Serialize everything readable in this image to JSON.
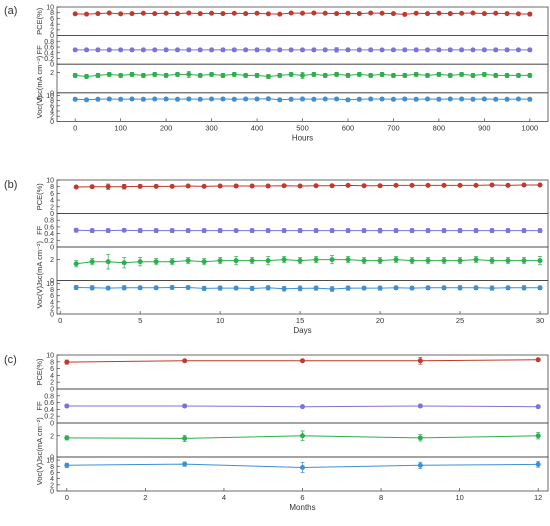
{
  "chart_data": [
    {
      "label": "(a)",
      "type": "line",
      "xlabel": "Hours",
      "xlim": [
        -40,
        1040
      ],
      "xticks": [
        0,
        100,
        200,
        300,
        400,
        500,
        600,
        700,
        800,
        900,
        1000
      ],
      "x": [
        0,
        25,
        50,
        75,
        100,
        125,
        150,
        175,
        200,
        225,
        250,
        275,
        300,
        325,
        350,
        375,
        400,
        425,
        450,
        475,
        500,
        525,
        550,
        575,
        600,
        625,
        650,
        675,
        700,
        725,
        750,
        775,
        800,
        825,
        850,
        875,
        900,
        925,
        950,
        975,
        1000
      ],
      "panels": [
        {
          "ylabel": "PCE(%)",
          "ylim": [
            0,
            10
          ],
          "yticks": [
            0,
            2,
            4,
            6,
            8,
            10
          ],
          "color": "#c0392b",
          "values": [
            7.6,
            7.5,
            7.7,
            7.9,
            7.6,
            7.7,
            7.8,
            7.7,
            7.8,
            7.7,
            7.9,
            7.7,
            7.8,
            7.7,
            7.8,
            7.7,
            7.8,
            7.6,
            7.5,
            7.9,
            7.8,
            7.9,
            7.8,
            7.7,
            7.8,
            7.7,
            7.9,
            7.8,
            7.7,
            7.4,
            7.8,
            7.7,
            7.8,
            7.7,
            7.8,
            7.9,
            7.7,
            7.8,
            7.7,
            7.6,
            7.5
          ],
          "errors": [
            0.3,
            0.3,
            0.3,
            0.3,
            0.3,
            0.3,
            0.3,
            0.3,
            0.3,
            0.3,
            0.3,
            0.3,
            0.4,
            0.3,
            0.3,
            0.3,
            0.3,
            0.3,
            0.3,
            0.3,
            0.4,
            0.3,
            0.3,
            0.3,
            0.3,
            0.3,
            0.3,
            0.3,
            0.3,
            0.4,
            0.3,
            0.3,
            0.3,
            0.3,
            0.3,
            0.3,
            0.3,
            0.3,
            0.3,
            0.3,
            0.6
          ]
        },
        {
          "ylabel": "FF",
          "ylim": [
            0,
            1
          ],
          "yticks": [
            0,
            0.2,
            0.4,
            0.6,
            0.8
          ],
          "color": "#7b74d6",
          "values": [
            0.5,
            0.5,
            0.5,
            0.5,
            0.5,
            0.5,
            0.5,
            0.5,
            0.5,
            0.5,
            0.5,
            0.5,
            0.5,
            0.5,
            0.5,
            0.5,
            0.5,
            0.5,
            0.5,
            0.5,
            0.5,
            0.5,
            0.5,
            0.5,
            0.5,
            0.5,
            0.5,
            0.5,
            0.5,
            0.5,
            0.5,
            0.5,
            0.5,
            0.5,
            0.5,
            0.5,
            0.5,
            0.5,
            0.5,
            0.5,
            0.5
          ],
          "errors": [
            0.05,
            0.06,
            0.06,
            0.06,
            0.05,
            0.06,
            0.06,
            0.05,
            0.06,
            0.06,
            0.06,
            0.05,
            0.06,
            0.06,
            0.06,
            0.05,
            0.06,
            0.06,
            0.06,
            0.05,
            0.06,
            0.06,
            0.06,
            0.08,
            0.06,
            0.06,
            0.06,
            0.05,
            0.06,
            0.06,
            0.06,
            0.05,
            0.06,
            0.06,
            0.06,
            0.05,
            0.06,
            0.06,
            0.06,
            0.05,
            0.06
          ]
        },
        {
          "ylabel": "Jsc(mA cm⁻²)",
          "ylim": [
            0,
            2.8
          ],
          "yticks": [
            0,
            2
          ],
          "color": "#2eae4d",
          "values": [
            1.7,
            1.6,
            1.7,
            1.8,
            1.7,
            1.8,
            1.7,
            1.8,
            1.7,
            1.8,
            1.8,
            1.7,
            1.8,
            1.7,
            1.8,
            1.7,
            1.7,
            1.6,
            1.7,
            1.8,
            1.7,
            1.8,
            1.7,
            1.8,
            1.7,
            1.8,
            1.7,
            1.8,
            1.7,
            1.7,
            1.8,
            1.7,
            1.8,
            1.7,
            1.8,
            1.7,
            1.8,
            1.7,
            1.7,
            1.7,
            1.7
          ],
          "errors": [
            0.2,
            0.2,
            0.2,
            0.2,
            0.2,
            0.2,
            0.2,
            0.2,
            0.2,
            0.2,
            0.3,
            0.2,
            0.2,
            0.2,
            0.2,
            0.2,
            0.2,
            0.2,
            0.2,
            0.2,
            0.3,
            0.2,
            0.2,
            0.2,
            0.2,
            0.2,
            0.2,
            0.2,
            0.2,
            0.2,
            0.2,
            0.2,
            0.2,
            0.2,
            0.2,
            0.2,
            0.2,
            0.2,
            0.2,
            0.2,
            0.2
          ]
        },
        {
          "ylabel": "Voc(V)",
          "ylim": [
            0,
            11
          ],
          "yticks": [
            0,
            2,
            4,
            6,
            8,
            10
          ],
          "color": "#3f8fd2",
          "values": [
            8.5,
            8.3,
            8.5,
            8.6,
            8.5,
            8.6,
            8.5,
            8.6,
            8.6,
            8.5,
            8.6,
            8.5,
            8.6,
            8.6,
            8.5,
            8.6,
            8.6,
            8.7,
            8.3,
            8.5,
            8.6,
            8.5,
            8.6,
            8.6,
            8.3,
            8.5,
            8.6,
            8.6,
            8.5,
            8.6,
            8.5,
            8.6,
            8.5,
            8.6,
            8.6,
            8.5,
            8.6,
            8.5,
            8.5,
            8.6,
            8.5
          ],
          "errors": [
            0.6,
            0.6,
            0.6,
            0.6,
            0.6,
            0.6,
            0.6,
            0.6,
            0.6,
            0.6,
            0.6,
            0.6,
            0.6,
            0.6,
            0.6,
            0.6,
            0.6,
            0.6,
            0.6,
            0.6,
            0.7,
            0.6,
            0.6,
            0.6,
            0.6,
            0.6,
            0.6,
            0.6,
            0.6,
            0.6,
            0.6,
            0.6,
            0.6,
            0.6,
            0.6,
            0.6,
            0.6,
            0.6,
            0.6,
            0.6,
            0.6
          ]
        }
      ]
    },
    {
      "label": "(b)",
      "type": "line",
      "xlabel": "Days",
      "xlim": [
        -0.2,
        30.5
      ],
      "xticks": [
        0,
        5,
        10,
        15,
        20,
        25,
        30
      ],
      "x": [
        1,
        2,
        3,
        4,
        5,
        6,
        7,
        8,
        9,
        10,
        11,
        12,
        13,
        14,
        15,
        16,
        17,
        18,
        19,
        20,
        21,
        22,
        23,
        24,
        25,
        26,
        27,
        28,
        29,
        30
      ],
      "panels": [
        {
          "ylabel": "PCE(%)",
          "ylim": [
            0,
            10
          ],
          "yticks": [
            0,
            2,
            4,
            6,
            8,
            10
          ],
          "color": "#c0392b",
          "values": [
            7.9,
            8.0,
            8.0,
            8.0,
            8.1,
            8.1,
            8.1,
            8.2,
            8.1,
            8.2,
            8.2,
            8.2,
            8.2,
            8.3,
            8.2,
            8.3,
            8.3,
            8.4,
            8.3,
            8.3,
            8.4,
            8.4,
            8.4,
            8.4,
            8.4,
            8.4,
            8.5,
            8.4,
            8.5,
            8.5
          ],
          "errors": [
            0.3,
            0.4,
            0.8,
            0.7,
            0.5,
            0.4,
            0.3,
            0.3,
            0.3,
            0.3,
            0.4,
            0.3,
            0.4,
            0.4,
            0.3,
            0.3,
            0.4,
            0.3,
            0.3,
            0.4,
            0.3,
            0.3,
            0.3,
            0.3,
            0.3,
            0.3,
            0.3,
            0.4,
            0.3,
            0.3
          ]
        },
        {
          "ylabel": "FF",
          "ylim": [
            0,
            1
          ],
          "yticks": [
            0,
            0.2,
            0.4,
            0.6,
            0.8
          ],
          "color": "#7b74d6",
          "values": [
            0.5,
            0.49,
            0.49,
            0.5,
            0.49,
            0.49,
            0.49,
            0.49,
            0.49,
            0.49,
            0.49,
            0.49,
            0.49,
            0.49,
            0.49,
            0.49,
            0.49,
            0.49,
            0.49,
            0.49,
            0.49,
            0.49,
            0.49,
            0.49,
            0.49,
            0.49,
            0.49,
            0.49,
            0.49,
            0.49
          ],
          "errors": [
            0.06,
            0.06,
            0.06,
            0.05,
            0.06,
            0.06,
            0.06,
            0.06,
            0.06,
            0.06,
            0.05,
            0.06,
            0.06,
            0.06,
            0.06,
            0.06,
            0.06,
            0.06,
            0.06,
            0.07,
            0.06,
            0.06,
            0.06,
            0.06,
            0.06,
            0.06,
            0.06,
            0.06,
            0.06,
            0.06
          ]
        },
        {
          "ylabel": "Jsc(mA cm⁻²)",
          "ylim": [
            0,
            3.2
          ],
          "yticks": [
            0,
            2
          ],
          "color": "#2eae4d",
          "values": [
            1.6,
            1.8,
            1.8,
            1.7,
            1.8,
            1.8,
            1.8,
            1.9,
            1.8,
            1.9,
            1.9,
            1.9,
            1.9,
            2.0,
            1.9,
            2.0,
            2.0,
            2.0,
            1.9,
            1.9,
            2.0,
            1.9,
            1.9,
            1.9,
            1.9,
            2.0,
            1.9,
            1.9,
            1.9,
            1.9
          ],
          "errors": [
            0.3,
            0.3,
            0.7,
            0.5,
            0.4,
            0.3,
            0.3,
            0.3,
            0.3,
            0.3,
            0.4,
            0.3,
            0.4,
            0.3,
            0.3,
            0.3,
            0.4,
            0.3,
            0.3,
            0.3,
            0.3,
            0.3,
            0.3,
            0.3,
            0.3,
            0.3,
            0.3,
            0.3,
            0.3,
            0.4
          ]
        },
        {
          "ylabel": "Voc(V)",
          "ylim": [
            0,
            11
          ],
          "yticks": [
            0,
            2,
            4,
            6,
            8,
            10
          ],
          "color": "#3f8fd2",
          "values": [
            8.7,
            8.6,
            8.5,
            8.6,
            8.6,
            8.6,
            8.7,
            8.7,
            8.4,
            8.5,
            8.5,
            8.4,
            8.6,
            8.3,
            8.4,
            8.5,
            8.2,
            8.5,
            8.5,
            8.5,
            8.6,
            8.5,
            8.6,
            8.6,
            8.6,
            8.6,
            8.5,
            8.6,
            8.6,
            8.6
          ],
          "errors": [
            0.7,
            0.7,
            0.6,
            0.7,
            0.6,
            0.6,
            0.6,
            0.6,
            0.7,
            0.7,
            0.6,
            0.7,
            0.7,
            0.8,
            0.8,
            0.7,
            0.8,
            0.7,
            0.6,
            0.7,
            0.6,
            0.6,
            0.6,
            0.6,
            0.7,
            0.6,
            0.7,
            0.6,
            0.7,
            0.6
          ]
        }
      ]
    },
    {
      "label": "(c)",
      "type": "line",
      "xlabel": "Months",
      "xlim": [
        -0.25,
        12.25
      ],
      "xticks": [
        0,
        2,
        4,
        6,
        8,
        10,
        12
      ],
      "x": [
        0,
        3,
        6,
        9,
        12
      ],
      "panels": [
        {
          "ylabel": "PCE(%)",
          "ylim": [
            0,
            10
          ],
          "yticks": [
            0,
            2,
            4,
            6,
            8,
            10
          ],
          "color": "#c0392b",
          "values": [
            7.9,
            8.3,
            8.3,
            8.3,
            8.6
          ],
          "errors": [
            0.6,
            0.3,
            0.3,
            1.0,
            0.4
          ]
        },
        {
          "ylabel": "FF",
          "ylim": [
            0,
            1
          ],
          "yticks": [
            0,
            0.2,
            0.4,
            0.6,
            0.8
          ],
          "color": "#7b74d6",
          "values": [
            0.5,
            0.5,
            0.48,
            0.5,
            0.48
          ],
          "errors": [
            0.05,
            0.05,
            0.04,
            0.05,
            0.04
          ]
        },
        {
          "ylabel": "Jsc(mA cm⁻²)",
          "ylim": [
            0,
            3.2
          ],
          "yticks": [
            0,
            2
          ],
          "color": "#2eae4d",
          "values": [
            1.8,
            1.75,
            2.0,
            1.8,
            2.0
          ],
          "errors": [
            0.2,
            0.3,
            0.45,
            0.3,
            0.3
          ]
        },
        {
          "ylabel": "Voc(V)",
          "ylim": [
            0,
            11
          ],
          "yticks": [
            0,
            2,
            4,
            6,
            8,
            10
          ],
          "color": "#3f8fd2",
          "values": [
            8.3,
            8.7,
            7.6,
            8.3,
            8.6
          ],
          "errors": [
            0.7,
            0.7,
            1.6,
            1.0,
            0.9
          ]
        }
      ]
    }
  ]
}
